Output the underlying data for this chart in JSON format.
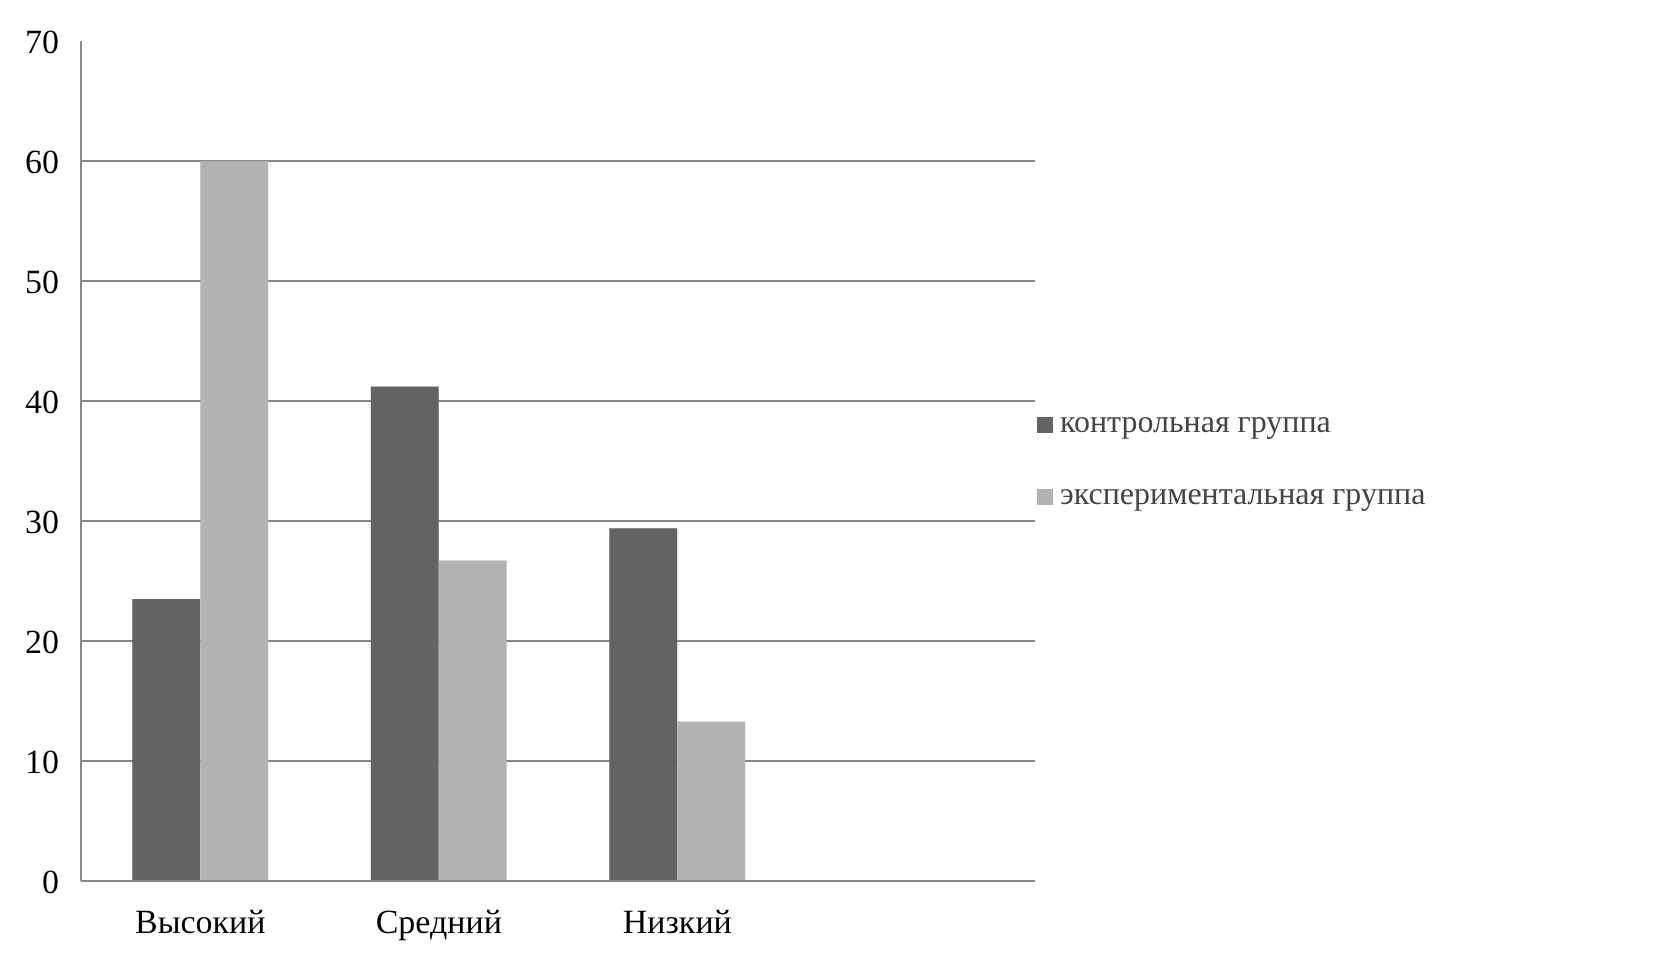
{
  "chart_data": {
    "type": "bar",
    "categories": [
      "Высокий",
      "Средний",
      "Низкий",
      null
    ],
    "series": [
      {
        "name": "контрольная группа",
        "color": "#636363",
        "values": [
          23.5,
          41.2,
          29.4,
          null
        ]
      },
      {
        "name": "экспериментальная группа",
        "color": "#b3b3b3",
        "values": [
          60,
          26.7,
          13.3,
          null
        ]
      }
    ],
    "ylim": [
      0,
      70
    ],
    "yticks": [
      0,
      10,
      20,
      30,
      40,
      50,
      60,
      70
    ],
    "grid": "y",
    "legend": "right"
  }
}
